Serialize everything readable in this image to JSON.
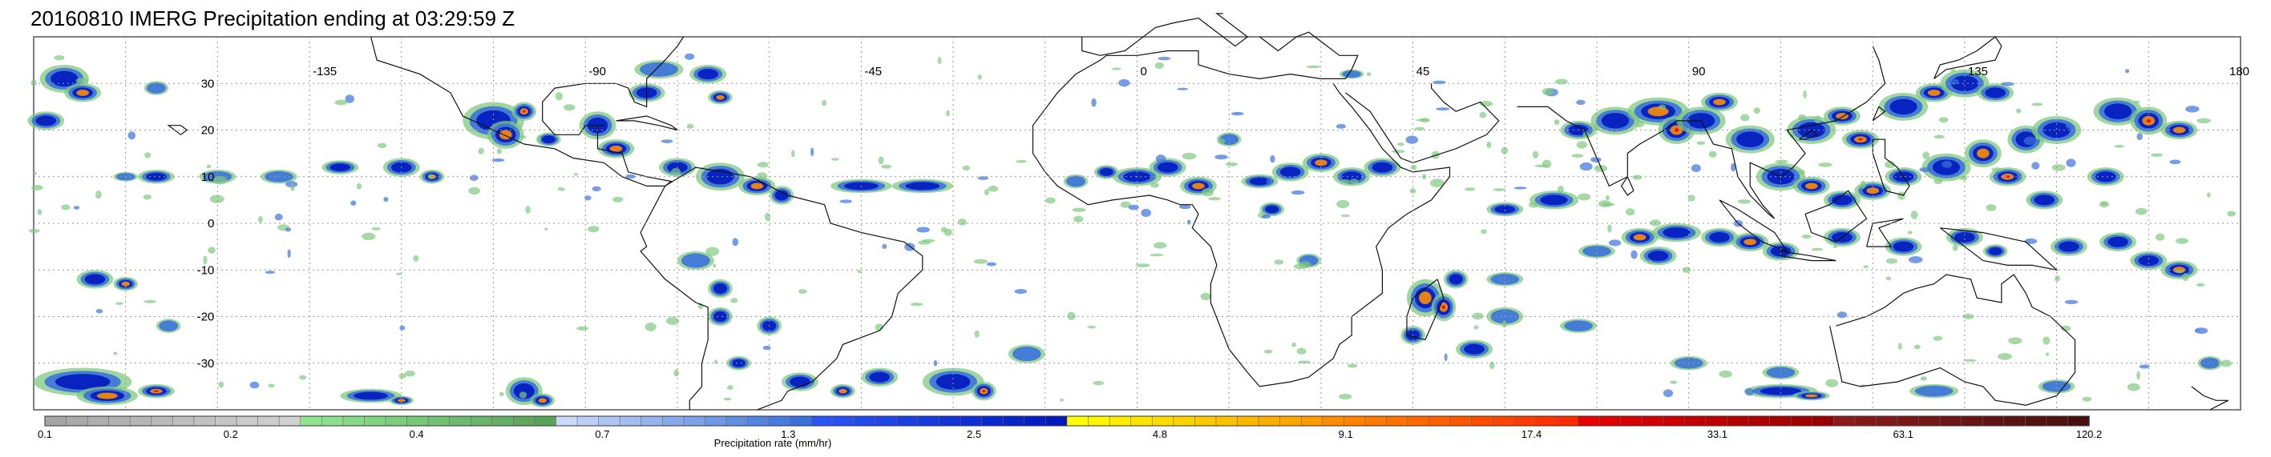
{
  "title": "20160810 IMERG Precipitation ending at 03:29:59 Z",
  "map": {
    "lon_labels": [
      "-135",
      "-90",
      "-45",
      "0",
      "45",
      "90",
      "135",
      "180"
    ],
    "lon_values": [
      -135,
      -90,
      -45,
      0,
      45,
      90,
      135,
      180
    ],
    "lat_labels": [
      "30",
      "20",
      "10",
      "0",
      "-10",
      "-20",
      "-30"
    ],
    "lat_values": [
      30,
      20,
      10,
      0,
      -10,
      -20,
      -30
    ],
    "lon_range": [
      -180,
      180
    ],
    "lat_range": [
      -40,
      40
    ],
    "grid": true,
    "grid_style": "dotted"
  },
  "colorbar": {
    "title": "Precipitation rate (mm/hr)",
    "tick_labels": [
      "0.1",
      "0.2",
      "0.4",
      "0.7",
      "1.3",
      "2.5",
      "4.8",
      "9.1",
      "17.4",
      "33.1",
      "63.1",
      "120.2"
    ],
    "colors": [
      "#a6a6a6",
      "#aaaaaa",
      "#aeaeae",
      "#b2b2b2",
      "#b6b6b6",
      "#bababa",
      "#bebebe",
      "#c2c2c2",
      "#c6c6c6",
      "#cacaca",
      "#cdcdcd",
      "#d1d1d1",
      "#91e591",
      "#8cdf8c",
      "#87d987",
      "#82d382",
      "#7dcd7d",
      "#78c778",
      "#73c173",
      "#6ebb6e",
      "#69b569",
      "#64af64",
      "#5fa95f",
      "#5aa35a",
      "#c9d9f7",
      "#bcd0f5",
      "#afc6f2",
      "#a2bdf0",
      "#95b3ed",
      "#88aaeb",
      "#7ba1e8",
      "#6e97e6",
      "#618ee3",
      "#5484e1",
      "#477bde",
      "#3a72dc",
      "#2a55f5",
      "#2650f0",
      "#224aeb",
      "#1e45e6",
      "#1a3fe1",
      "#163adc",
      "#1234d7",
      "#0e2fd2",
      "#0a29cd",
      "#0624c8",
      "#041ec3",
      "#0219be",
      "#ffff00",
      "#fff600",
      "#ffed00",
      "#ffe400",
      "#ffdb00",
      "#ffd200",
      "#ffc900",
      "#ffc000",
      "#ffb700",
      "#ffae00",
      "#ffa500",
      "#ff9c00",
      "#ff8c00",
      "#ff8300",
      "#ff7a00",
      "#ff7100",
      "#ff6800",
      "#ff5f00",
      "#ff5600",
      "#ff4d00",
      "#ff4400",
      "#ff3b00",
      "#ff3200",
      "#ff2900",
      "#e60000",
      "#df0000",
      "#d80000",
      "#d10000",
      "#ca0000",
      "#c30000",
      "#bc0000",
      "#b50000",
      "#ae0000",
      "#a70000",
      "#a00000",
      "#990000",
      "#8b1a1a",
      "#851919",
      "#7f1818",
      "#791717",
      "#731616",
      "#6d1515",
      "#671414",
      "#611313",
      "#5b1212",
      "#551111",
      "#4f1010",
      "#490f0f"
    ]
  },
  "legend_colors": {
    "light": "#7fc97f",
    "moderate": "#3a72dc",
    "heavy": "#0219be",
    "intense": "#ff8c00",
    "extreme": "#e60000"
  }
}
